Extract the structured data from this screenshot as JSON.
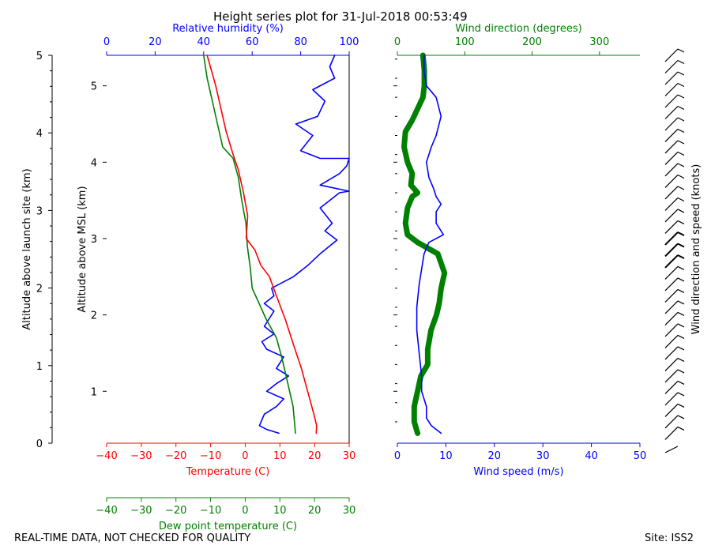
{
  "title": "Height series plot for 31-Jul-2018 00:53:49",
  "footer_left": "REAL-TIME DATA, NOT CHECKED FOR QUALITY",
  "footer_right": "Site: ISS2",
  "colors": {
    "temperature": "#ff0000",
    "dewpoint": "#008000",
    "humidity": "#0000ff",
    "wind_speed": "#0000ff",
    "wind_direction": "#008000",
    "barbs": "#000000"
  },
  "chart_data": [
    {
      "type": "line",
      "axes": {
        "temperature": {
          "label": "Temperature (C)",
          "range": [
            -40,
            30
          ],
          "ticks": [
            -40,
            -30,
            -20,
            -10,
            0,
            10,
            20,
            30
          ]
        },
        "dewpoint": {
          "label": "Dew point temperature (C)",
          "range": [
            -40,
            30
          ],
          "ticks": [
            -40,
            -30,
            -20,
            -10,
            0,
            10,
            20,
            30
          ]
        },
        "humidity": {
          "label": "Relative humidity (%)",
          "range": [
            0,
            100
          ],
          "ticks": [
            0,
            20,
            40,
            60,
            80,
            100
          ]
        },
        "altitude_msl": {
          "label": "Altitude above MSL (km)",
          "range": [
            0.32,
            5.4
          ],
          "ticks": [
            1,
            2,
            3,
            4,
            5
          ]
        },
        "altitude_site": {
          "label": "Altitude above launch site (km)",
          "range": [
            0,
            5
          ],
          "ticks": [
            0,
            1,
            2,
            3,
            4,
            5
          ]
        }
      },
      "series": [
        {
          "name": "Temperature",
          "axis": "temperature",
          "points": [
            [
              20.5,
              0.45
            ],
            [
              20.6,
              0.55
            ],
            [
              19.8,
              0.7
            ],
            [
              18.0,
              1.0
            ],
            [
              16.2,
              1.3
            ],
            [
              14.0,
              1.6
            ],
            [
              11.5,
              1.95
            ],
            [
              9.0,
              2.25
            ],
            [
              7.0,
              2.5
            ],
            [
              4.5,
              2.65
            ],
            [
              2.8,
              2.85
            ],
            [
              0.3,
              3.0
            ],
            [
              0.7,
              3.3
            ],
            [
              -0.5,
              3.6
            ],
            [
              -2.0,
              3.9
            ],
            [
              -3.5,
              4.1
            ],
            [
              -5.5,
              4.4
            ],
            [
              -7.0,
              4.7
            ],
            [
              -8.5,
              5.0
            ],
            [
              -11.0,
              5.4
            ]
          ]
        },
        {
          "name": "Dew point",
          "axis": "dewpoint",
          "points": [
            [
              14.5,
              0.45
            ],
            [
              14.2,
              0.6
            ],
            [
              13.8,
              0.8
            ],
            [
              12.8,
              1.0
            ],
            [
              11.8,
              1.2
            ],
            [
              10.5,
              1.45
            ],
            [
              9.0,
              1.7
            ],
            [
              6.0,
              1.95
            ],
            [
              4.0,
              2.15
            ],
            [
              2.0,
              2.35
            ],
            [
              1.5,
              2.6
            ],
            [
              0.6,
              2.9
            ],
            [
              0.2,
              3.2
            ],
            [
              -1.0,
              3.5
            ],
            [
              -2.0,
              3.8
            ],
            [
              -3.5,
              4.05
            ],
            [
              -6.5,
              4.2
            ],
            [
              -8.0,
              4.5
            ],
            [
              -9.5,
              4.8
            ],
            [
              -11.0,
              5.1
            ],
            [
              -12.0,
              5.4
            ]
          ]
        },
        {
          "name": "Relative humidity",
          "axis": "humidity",
          "points": [
            [
              71,
              0.45
            ],
            [
              66,
              0.5
            ],
            [
              63,
              0.55
            ],
            [
              65,
              0.7
            ],
            [
              70,
              0.8
            ],
            [
              73,
              0.9
            ],
            [
              66,
              1.0
            ],
            [
              70,
              1.1
            ],
            [
              75,
              1.2
            ],
            [
              70,
              1.3
            ],
            [
              73,
              1.45
            ],
            [
              66,
              1.55
            ],
            [
              64,
              1.65
            ],
            [
              69,
              1.75
            ],
            [
              65,
              1.85
            ],
            [
              67,
              1.95
            ],
            [
              69,
              2.05
            ],
            [
              65,
              2.15
            ],
            [
              69,
              2.25
            ],
            [
              68,
              2.35
            ],
            [
              77,
              2.5
            ],
            [
              83,
              2.65
            ],
            [
              88,
              2.8
            ],
            [
              95,
              2.98
            ],
            [
              90,
              3.1
            ],
            [
              93,
              3.2
            ],
            [
              88,
              3.4
            ],
            [
              96,
              3.6
            ],
            [
              100,
              3.62
            ],
            [
              88,
              3.7
            ],
            [
              96,
              3.85
            ],
            [
              99,
              3.95
            ],
            [
              100,
              4.05
            ],
            [
              88,
              4.05
            ],
            [
              80,
              4.15
            ],
            [
              85,
              4.35
            ],
            [
              78,
              4.5
            ],
            [
              87,
              4.6
            ],
            [
              90,
              4.8
            ],
            [
              85,
              4.95
            ],
            [
              94,
              5.1
            ],
            [
              92,
              5.25
            ],
            [
              94,
              5.4
            ]
          ]
        }
      ]
    },
    {
      "type": "line",
      "axes": {
        "wind_speed": {
          "label": "Wind speed (m/s)",
          "range": [
            0,
            50
          ],
          "ticks": [
            0,
            10,
            20,
            30,
            40,
            50
          ]
        },
        "wind_direction": {
          "label": "Wind direction (degrees)",
          "range": [
            0,
            360
          ],
          "ticks": [
            0,
            100,
            200,
            300
          ]
        },
        "barbs": {
          "label": "Wind direction and speed (knots)"
        }
      },
      "series": [
        {
          "name": "Wind speed",
          "axis": "wind_speed",
          "points": [
            [
              9,
              0.45
            ],
            [
              7,
              0.55
            ],
            [
              6,
              0.65
            ],
            [
              6,
              0.8
            ],
            [
              5,
              1.0
            ],
            [
              5,
              1.2
            ],
            [
              4.5,
              1.5
            ],
            [
              4,
              1.8
            ],
            [
              4,
              2.1
            ],
            [
              4.5,
              2.4
            ],
            [
              5,
              2.6
            ],
            [
              5.5,
              2.8
            ],
            [
              6.5,
              2.95
            ],
            [
              9.5,
              3.05
            ],
            [
              8,
              3.2
            ],
            [
              8,
              3.35
            ],
            [
              9,
              3.45
            ],
            [
              8,
              3.55
            ],
            [
              7.5,
              3.65
            ],
            [
              6.5,
              3.8
            ],
            [
              6,
              4.0
            ],
            [
              7,
              4.2
            ],
            [
              8,
              4.35
            ],
            [
              9,
              4.6
            ],
            [
              8,
              4.85
            ],
            [
              6,
              5.0
            ],
            [
              5.5,
              5.2
            ],
            [
              5.5,
              5.4
            ]
          ]
        },
        {
          "name": "Wind direction",
          "axis": "wind_direction",
          "points": [
            [
              30,
              0.45
            ],
            [
              25,
              0.6
            ],
            [
              25,
              0.8
            ],
            [
              30,
              1.0
            ],
            [
              35,
              1.2
            ],
            [
              45,
              1.35
            ],
            [
              45,
              1.55
            ],
            [
              50,
              1.8
            ],
            [
              58,
              2.0
            ],
            [
              62,
              2.15
            ],
            [
              65,
              2.35
            ],
            [
              70,
              2.55
            ],
            [
              60,
              2.8
            ],
            [
              30,
              2.95
            ],
            [
              15,
              3.05
            ],
            [
              12,
              3.2
            ],
            [
              15,
              3.4
            ],
            [
              22,
              3.55
            ],
            [
              30,
              3.6
            ],
            [
              20,
              3.7
            ],
            [
              22,
              3.85
            ],
            [
              15,
              4.0
            ],
            [
              10,
              4.2
            ],
            [
              12,
              4.4
            ],
            [
              22,
              4.55
            ],
            [
              30,
              4.7
            ],
            [
              38,
              4.85
            ],
            [
              40,
              5.0
            ],
            [
              40,
              5.2
            ],
            [
              38,
              5.4
            ]
          ]
        }
      ]
    }
  ]
}
